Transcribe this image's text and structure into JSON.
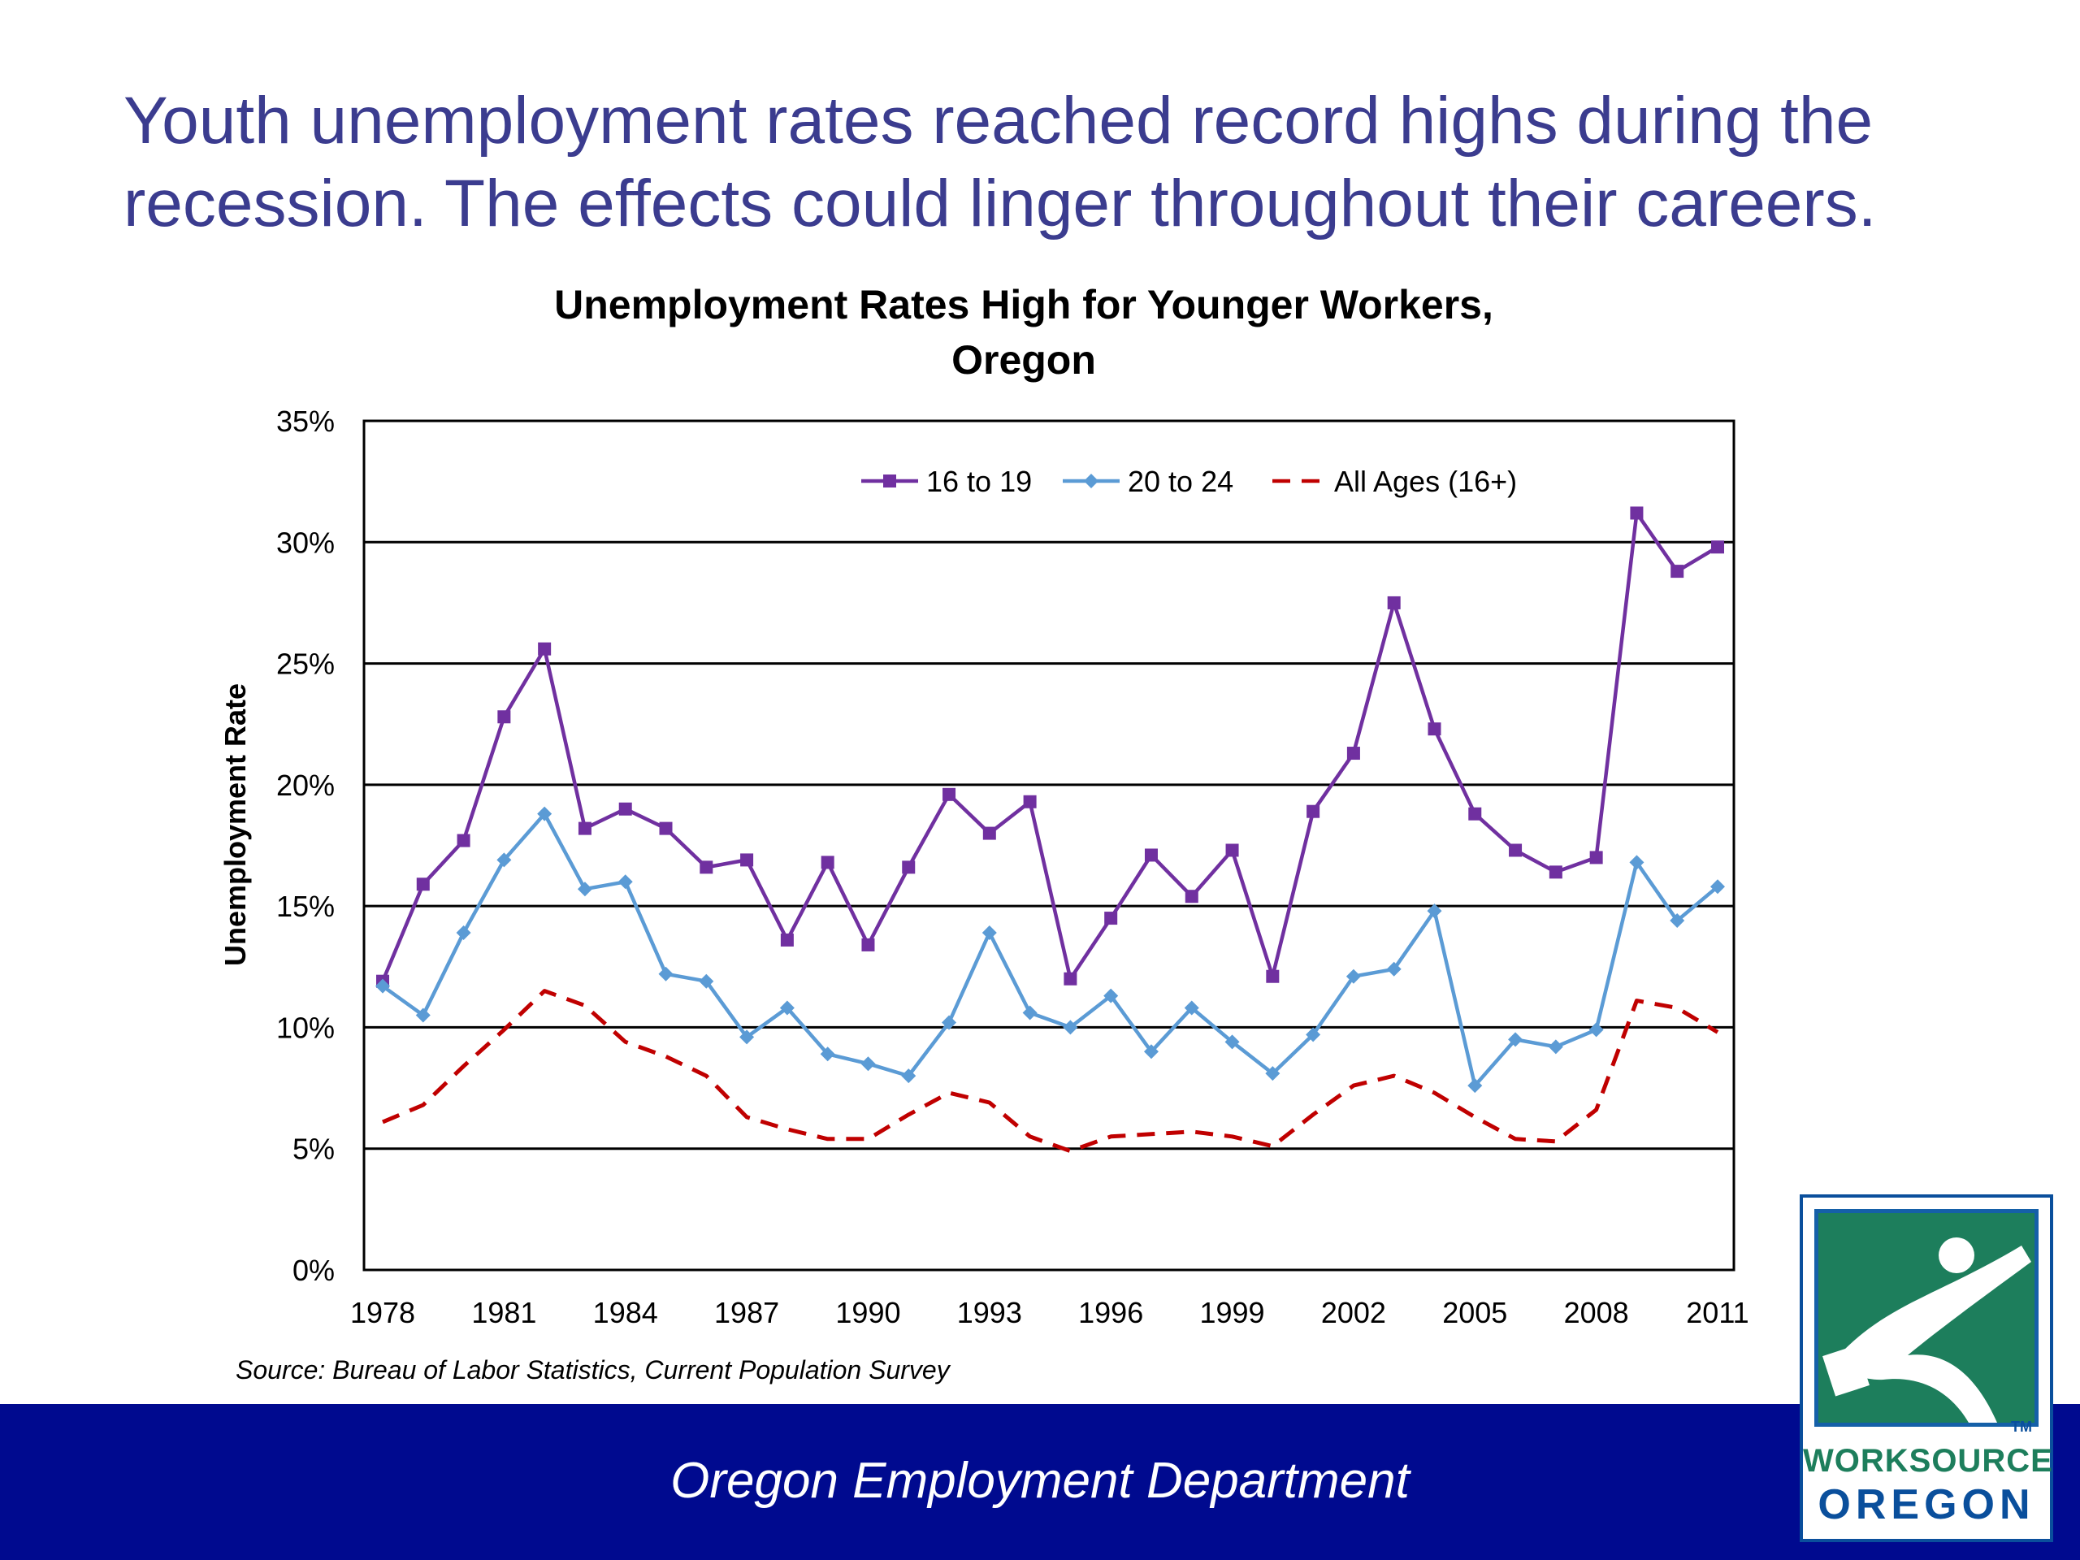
{
  "headline": "Youth unemployment rates reached record highs during the recession. The effects could linger throughout their careers.",
  "footer": {
    "organization": "Oregon Employment Department"
  },
  "logo": {
    "line1": "WORKSOURCE",
    "line2": "OREGON",
    "tm": "TM"
  },
  "colors": {
    "headline": "#3b3c8f",
    "footer_band": "#000a8f",
    "teen": "#7030a0",
    "young": "#5b9bd5",
    "all": "#c00000"
  },
  "chart_data": {
    "type": "line",
    "title": "Unemployment Rates High for Younger Workers, Oregon",
    "title_lines": [
      "Unemployment Rates High for Younger Workers,",
      "Oregon"
    ],
    "ylabel": "Unemployment Rate",
    "xlabel": "",
    "source": "Source: Bureau of Labor Statistics, Current Population Survey",
    "ylim": [
      0,
      35
    ],
    "y_ticks": [
      "0%",
      "5%",
      "10%",
      "15%",
      "20%",
      "25%",
      "30%",
      "35%"
    ],
    "x_tick_labels": [
      "1978",
      "1981",
      "1984",
      "1987",
      "1990",
      "1993",
      "1996",
      "1999",
      "2002",
      "2005",
      "2008",
      "2011"
    ],
    "grid": true,
    "legend_position": "top-right",
    "x": [
      1978,
      1979,
      1980,
      1981,
      1982,
      1983,
      1984,
      1985,
      1986,
      1987,
      1988,
      1989,
      1990,
      1991,
      1992,
      1993,
      1994,
      1995,
      1996,
      1997,
      1998,
      1999,
      2000,
      2001,
      2002,
      2003,
      2004,
      2005,
      2006,
      2007,
      2008,
      2009,
      2010,
      2011
    ],
    "series": [
      {
        "name": "16 to 19",
        "color": "#7030a0",
        "marker": "square",
        "style": "solid",
        "values": [
          11.9,
          15.9,
          17.7,
          22.8,
          25.6,
          18.2,
          19.0,
          18.2,
          16.6,
          16.9,
          13.6,
          16.8,
          13.4,
          16.6,
          19.6,
          18.0,
          19.3,
          12.0,
          14.5,
          17.1,
          15.4,
          17.3,
          12.1,
          18.9,
          21.3,
          27.5,
          22.3,
          18.8,
          17.3,
          16.4,
          17.0,
          31.2,
          28.8,
          29.8
        ]
      },
      {
        "name": "20 to 24",
        "color": "#5b9bd5",
        "marker": "diamond",
        "style": "solid",
        "values": [
          11.7,
          10.5,
          13.9,
          16.9,
          18.8,
          15.7,
          16.0,
          12.2,
          11.9,
          9.6,
          10.8,
          8.9,
          8.5,
          8.0,
          10.2,
          13.9,
          10.6,
          10.0,
          11.3,
          9.0,
          10.8,
          9.4,
          8.1,
          9.7,
          12.1,
          12.4,
          14.8,
          7.6,
          9.5,
          9.2,
          9.9,
          16.8,
          14.4,
          15.8
        ]
      },
      {
        "name": "All Ages (16+)",
        "color": "#c00000",
        "marker": "none",
        "style": "dashed",
        "values": [
          6.1,
          6.8,
          8.4,
          9.9,
          11.5,
          10.9,
          9.4,
          8.8,
          8.0,
          6.3,
          5.8,
          5.4,
          5.4,
          6.4,
          7.3,
          6.9,
          5.5,
          4.9,
          5.5,
          5.6,
          5.7,
          5.5,
          5.1,
          6.4,
          7.6,
          8.0,
          7.3,
          6.3,
          5.4,
          5.3,
          6.6,
          11.1,
          10.8,
          9.8
        ]
      }
    ]
  }
}
